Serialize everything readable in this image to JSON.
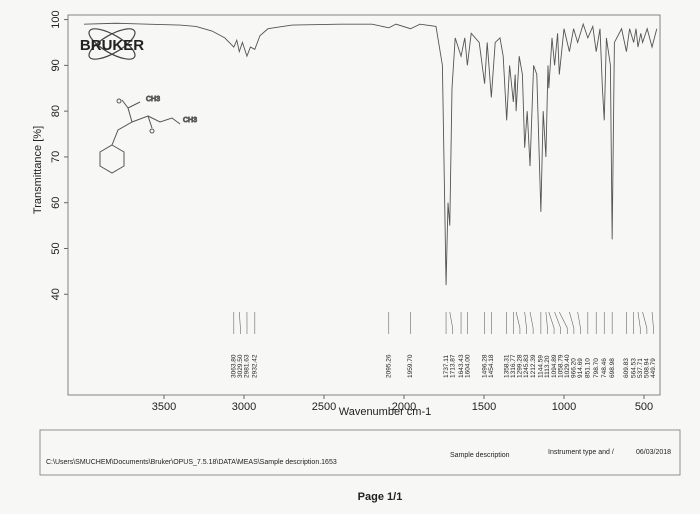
{
  "chart_data": {
    "type": "line",
    "logo": "BRUKER",
    "y_label": "Transmittance [%]",
    "x_label": "Wavenumber cm-1",
    "structure_labels": [
      "CH3",
      "CH3"
    ],
    "xlim": [
      4100,
      400
    ],
    "ylim": [
      18,
      101
    ],
    "xticks": [
      3500,
      3000,
      2500,
      2000,
      1500,
      1000,
      500
    ],
    "yticks": [
      40,
      50,
      60,
      70,
      80,
      90,
      100
    ],
    "color": "#555555",
    "x": [
      4000,
      3800,
      3600,
      3400,
      3300,
      3200,
      3120,
      3063.8,
      3045,
      3029.5,
      3010,
      2981.63,
      2960,
      2932.42,
      2900,
      2850,
      2700,
      2400,
      2200,
      2095.26,
      2050,
      1959.7,
      1900,
      1800,
      1760,
      1737.11,
      1725,
      1713.87,
      1700,
      1680,
      1643.43,
      1620,
      1604,
      1580,
      1530,
      1496.28,
      1480,
      1454.18,
      1430,
      1400,
      1380,
      1358.31,
      1340,
      1316.77,
      1305,
      1299.28,
      1280,
      1260,
      1245.83,
      1230,
      1212.39,
      1190,
      1170,
      1144.59,
      1130,
      1113.2,
      1100,
      1094.89,
      1075,
      1058.79,
      1040,
      1029.4,
      1000,
      966.2,
      940,
      914.69,
      880,
      851.1,
      820,
      798.7,
      775,
      760,
      748.46,
      735,
      710,
      698.98,
      685,
      640,
      609.83,
      590,
      564.53,
      550,
      537.71,
      520,
      508.94,
      480,
      449.79,
      420
    ],
    "values": [
      99,
      99.2,
      99,
      98.8,
      98.5,
      97.5,
      96,
      94,
      95.5,
      93,
      95,
      92,
      94,
      93.5,
      96.5,
      98,
      98.8,
      99,
      99,
      98.2,
      99,
      98,
      99,
      98.5,
      90,
      42,
      60,
      55,
      85,
      96,
      92,
      96,
      90,
      97,
      95,
      86,
      95,
      83,
      95,
      96,
      92,
      78,
      90,
      82,
      88,
      80,
      92,
      88,
      72,
      80,
      68,
      90,
      88,
      58,
      80,
      70,
      90,
      85,
      96,
      90,
      97,
      88,
      98,
      93,
      98,
      95,
      99,
      96,
      98.5,
      93,
      98,
      85,
      78,
      96,
      90,
      52,
      95,
      98,
      93,
      98,
      95,
      98,
      94,
      97,
      95,
      98,
      94,
      98
    ],
    "peaks": [
      {
        "value": 3063.8,
        "label": "3063.80"
      },
      {
        "value": 3029.5,
        "label": "3029.50"
      },
      2981.63,
      2932.42,
      2095.26,
      {
        "value": 1959.7,
        "label": "1959.70"
      },
      1737.11,
      1713.87,
      1643.43,
      {
        "value": 1604,
        "label": "1604.00"
      },
      1496.28,
      1454.18,
      1358.31,
      1316.77,
      1299.28,
      1245.83,
      1212.39,
      1144.59,
      {
        "value": 1113.2,
        "label": "1113.20"
      },
      1094.89,
      1058.79,
      {
        "value": 1029.4,
        "label": "1029.40"
      },
      {
        "value": 966.2,
        "label": "966.20"
      },
      914.69,
      {
        "value": 851.1,
        "label": "851.10"
      },
      {
        "value": 798.7,
        "label": "798.70"
      },
      748.46,
      698.98,
      609.83,
      564.53,
      537.71,
      508.94,
      449.79
    ]
  },
  "footer": {
    "path": "C:\\Users\\SMUCHEM\\Documents\\Bruker\\OPUS_7.5.18\\DATA\\MEAS\\Sample description.1653",
    "sample": "Sample description",
    "instrument": "Instrument type and /",
    "date": "06/03/2018",
    "page": "Page 1/1"
  }
}
